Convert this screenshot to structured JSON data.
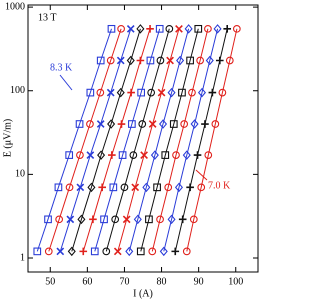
{
  "chart_data": {
    "type": "line",
    "annotations": [
      "13 T",
      "8.3 K",
      "7.0 K"
    ],
    "xlabel": "I (A)",
    "ylabel": "E (μV/m)",
    "xlim": [
      44,
      106
    ],
    "xticks": [
      50,
      60,
      70,
      80,
      90,
      100
    ],
    "ylim": [
      0.68,
      1060
    ],
    "yticks": [
      1,
      10,
      100,
      1000
    ],
    "yscale": "log",
    "series": [
      {
        "color": "#2a3cd8",
        "marker": "square",
        "x": [
          46.5,
          49.4,
          52.2,
          55.1,
          57.9,
          60.8,
          63.6,
          66.5
        ],
        "values": [
          1.2,
          2.9,
          7,
          17,
          40,
          95,
          230,
          550
        ]
      },
      {
        "color": "#e0201b",
        "marker": "circle",
        "x": [
          49.6,
          52.4,
          55.2,
          58.0,
          60.7,
          63.5,
          66.3,
          69.1
        ],
        "values": [
          1.2,
          2.9,
          7,
          17,
          40,
          95,
          230,
          550
        ]
      },
      {
        "color": "#2a3cd8",
        "marker": "x",
        "x": [
          52.7,
          55.4,
          58.1,
          60.8,
          63.6,
          66.3,
          69.0,
          71.7
        ],
        "values": [
          1.2,
          2.9,
          7,
          17,
          40,
          95,
          230,
          550
        ]
      },
      {
        "color": "#111111",
        "marker": "diamond",
        "x": [
          55.8,
          58.4,
          61.1,
          63.7,
          66.4,
          69.0,
          71.7,
          74.3
        ],
        "values": [
          1.2,
          2.9,
          7,
          17,
          40,
          95,
          230,
          550
        ]
      },
      {
        "color": "#e0201b",
        "marker": "plus",
        "x": [
          58.9,
          61.5,
          64.0,
          66.6,
          69.2,
          71.8,
          74.3,
          76.9
        ],
        "values": [
          1.2,
          2.9,
          7,
          17,
          40,
          95,
          230,
          550
        ]
      },
      {
        "color": "#2a3cd8",
        "marker": "square",
        "x": [
          62.0,
          64.5,
          67.0,
          69.5,
          72.0,
          74.5,
          77.0,
          79.5
        ],
        "values": [
          1.2,
          2.9,
          7,
          17,
          40,
          95,
          230,
          550
        ]
      },
      {
        "color": "#111111",
        "marker": "circle",
        "x": [
          65.1,
          67.5,
          70.0,
          72.4,
          74.8,
          77.2,
          79.7,
          82.1
        ],
        "values": [
          1.2,
          2.9,
          7,
          17,
          40,
          95,
          230,
          550
        ]
      },
      {
        "color": "#e0201b",
        "marker": "x",
        "x": [
          68.2,
          70.6,
          72.9,
          75.3,
          77.6,
          80.0,
          82.3,
          84.7
        ],
        "values": [
          1.2,
          2.9,
          7,
          17,
          40,
          95,
          230,
          550
        ]
      },
      {
        "color": "#2a3cd8",
        "marker": "diamond",
        "x": [
          71.3,
          73.6,
          75.9,
          78.2,
          80.4,
          82.7,
          85.0,
          87.3
        ],
        "values": [
          1.2,
          2.9,
          7,
          17,
          40,
          95,
          230,
          550
        ]
      },
      {
        "color": "#111111",
        "marker": "square",
        "x": [
          74.4,
          76.6,
          78.8,
          81.0,
          83.3,
          85.5,
          87.7,
          89.9
        ],
        "values": [
          1.2,
          2.9,
          7,
          17,
          40,
          95,
          230,
          550
        ]
      },
      {
        "color": "#e0201b",
        "marker": "circle",
        "x": [
          77.5,
          79.6,
          81.8,
          83.9,
          86.1,
          88.2,
          90.4,
          92.5
        ],
        "values": [
          1.2,
          2.9,
          7,
          17,
          40,
          95,
          230,
          550
        ]
      },
      {
        "color": "#2a3cd8",
        "marker": "diamond",
        "x": [
          80.6,
          82.7,
          84.7,
          86.8,
          88.9,
          90.9,
          93.0,
          95.1
        ],
        "values": [
          1.2,
          2.9,
          7,
          17,
          40,
          95,
          230,
          550
        ]
      },
      {
        "color": "#111111",
        "marker": "plus",
        "x": [
          83.7,
          85.7,
          87.7,
          89.7,
          91.7,
          93.7,
          95.7,
          97.7
        ],
        "values": [
          1.2,
          2.9,
          7,
          17,
          40,
          95,
          230,
          550
        ]
      },
      {
        "color": "#e0201b",
        "marker": "circle",
        "x": [
          86.8,
          88.7,
          90.7,
          92.6,
          94.5,
          96.4,
          98.4,
          100.3
        ],
        "values": [
          1.2,
          2.9,
          7,
          17,
          40,
          95,
          230,
          550
        ]
      }
    ]
  }
}
